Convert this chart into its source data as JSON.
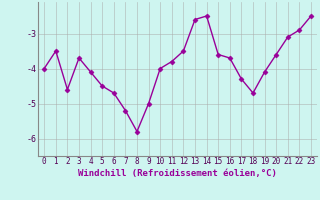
{
  "x": [
    0,
    1,
    2,
    3,
    4,
    5,
    6,
    7,
    8,
    9,
    10,
    11,
    12,
    13,
    14,
    15,
    16,
    17,
    18,
    19,
    20,
    21,
    22,
    23
  ],
  "y": [
    -4.0,
    -3.5,
    -4.6,
    -3.7,
    -4.1,
    -4.5,
    -4.7,
    -5.2,
    -5.8,
    -5.0,
    -4.0,
    -3.8,
    -3.5,
    -2.6,
    -2.5,
    -3.6,
    -3.7,
    -4.3,
    -4.7,
    -4.1,
    -3.6,
    -3.1,
    -2.9,
    -2.5
  ],
  "line_color": "#990099",
  "marker": "D",
  "markersize": 2.5,
  "linewidth": 1.0,
  "bg_color": "#cef5f0",
  "grid_color": "#aaaaaa",
  "xlabel": "Windchill (Refroidissement éolien,°C)",
  "xlabel_fontsize": 6.5,
  "ytick_labels": [
    "-6",
    "-5",
    "-4",
    "-3"
  ],
  "yticks": [
    -6,
    -5,
    -4,
    -3
  ],
  "xticks": [
    0,
    1,
    2,
    3,
    4,
    5,
    6,
    7,
    8,
    9,
    10,
    11,
    12,
    13,
    14,
    15,
    16,
    17,
    18,
    19,
    20,
    21,
    22,
    23
  ],
  "ylim": [
    -6.5,
    -2.1
  ],
  "xlim": [
    -0.5,
    23.5
  ],
  "tick_fontsize": 5.5,
  "label_color": "#990099"
}
